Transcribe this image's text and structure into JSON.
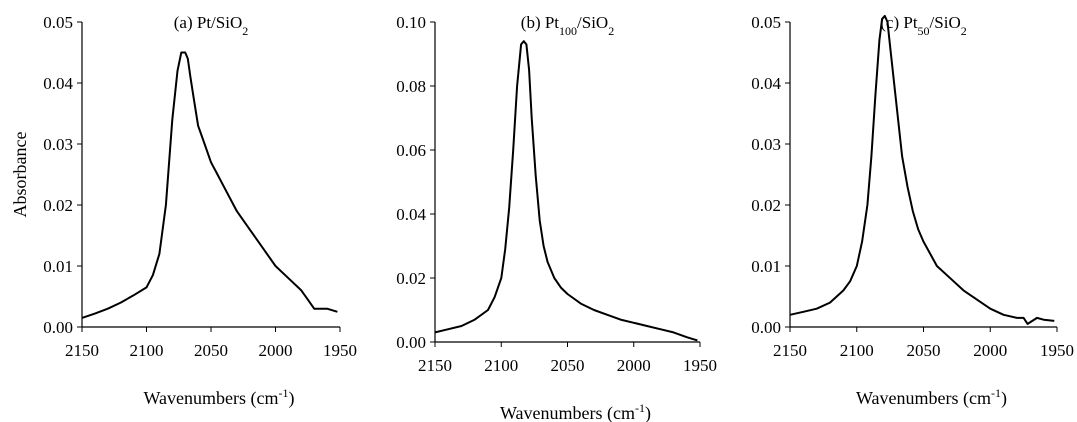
{
  "chart_data": [
    {
      "type": "line",
      "title": "(a) Pt/SiO₂",
      "title_parts": [
        {
          "t": "(a) Pt/SiO"
        },
        {
          "t": "2",
          "sub": true
        }
      ],
      "xlabel": "Wavenumbers (cm⁻¹)",
      "ylabel": "Absorbance",
      "xlim": [
        2150,
        1950
      ],
      "ylim": [
        0,
        0.05
      ],
      "x_ticks": [
        2150,
        2100,
        2050,
        2000,
        1950
      ],
      "y_ticks": [
        0.0,
        0.01,
        0.02,
        0.03,
        0.04,
        0.05
      ],
      "y_tick_labels": [
        "0.00",
        "0.01",
        "0.02",
        "0.03",
        "0.04",
        "0.05"
      ],
      "grid": false,
      "series": [
        {
          "x": [
            2150,
            2140,
            2130,
            2120,
            2110,
            2100,
            2095,
            2090,
            2085,
            2080,
            2076,
            2073,
            2070,
            2068,
            2066,
            2063,
            2060,
            2055,
            2050,
            2045,
            2040,
            2030,
            2020,
            2010,
            2000,
            1990,
            1980,
            1975,
            1970,
            1960,
            1952
          ],
          "y": [
            0.0015,
            0.0022,
            0.003,
            0.004,
            0.0052,
            0.0065,
            0.0085,
            0.012,
            0.02,
            0.034,
            0.042,
            0.045,
            0.045,
            0.044,
            0.041,
            0.037,
            0.033,
            0.03,
            0.027,
            0.025,
            0.023,
            0.019,
            0.016,
            0.013,
            0.01,
            0.008,
            0.006,
            0.0045,
            0.003,
            0.003,
            0.0025
          ]
        }
      ]
    },
    {
      "type": "line",
      "title": "(b) Pt₁₀₀/SiO₂",
      "title_parts": [
        {
          "t": "(b) Pt"
        },
        {
          "t": "100",
          "sub": true
        },
        {
          "t": "/SiO"
        },
        {
          "t": "2",
          "sub": true
        }
      ],
      "xlabel": "Wavenumbers (cm⁻¹)",
      "ylabel": "",
      "xlim": [
        2150,
        1950
      ],
      "ylim": [
        0,
        0.1
      ],
      "x_ticks": [
        2150,
        2100,
        2050,
        2000,
        1950
      ],
      "y_ticks": [
        0.0,
        0.02,
        0.04,
        0.06,
        0.08,
        0.1
      ],
      "y_tick_labels": [
        "0.00",
        "0.02",
        "0.04",
        "0.06",
        "0.08",
        "0.10"
      ],
      "grid": false,
      "series": [
        {
          "x": [
            2150,
            2140,
            2130,
            2120,
            2110,
            2105,
            2100,
            2097,
            2094,
            2091,
            2088,
            2085,
            2083,
            2081,
            2079,
            2077,
            2074,
            2071,
            2068,
            2065,
            2060,
            2055,
            2050,
            2040,
            2030,
            2020,
            2010,
            2000,
            1990,
            1980,
            1970,
            1960,
            1952
          ],
          "y": [
            0.003,
            0.004,
            0.005,
            0.007,
            0.01,
            0.014,
            0.02,
            0.029,
            0.042,
            0.06,
            0.08,
            0.093,
            0.094,
            0.093,
            0.085,
            0.07,
            0.052,
            0.038,
            0.03,
            0.025,
            0.02,
            0.017,
            0.015,
            0.012,
            0.01,
            0.0085,
            0.007,
            0.006,
            0.005,
            0.004,
            0.003,
            0.0015,
            0.0005
          ]
        }
      ]
    },
    {
      "type": "line",
      "title": "(c) Pt₅₀/SiO₂",
      "title_parts": [
        {
          "t": "(c) Pt"
        },
        {
          "t": "50",
          "sub": true
        },
        {
          "t": "/SiO"
        },
        {
          "t": "2",
          "sub": true
        }
      ],
      "xlabel": "Wavenumbers (cm⁻¹)",
      "ylabel": "",
      "xlim": [
        2150,
        1950
      ],
      "ylim": [
        0,
        0.05
      ],
      "x_ticks": [
        2150,
        2100,
        2050,
        2000,
        1950
      ],
      "y_ticks": [
        0.0,
        0.01,
        0.02,
        0.03,
        0.04,
        0.05
      ],
      "y_tick_labels": [
        "0.00",
        "0.01",
        "0.02",
        "0.03",
        "0.04",
        "0.05"
      ],
      "grid": false,
      "series": [
        {
          "x": [
            2150,
            2140,
            2130,
            2120,
            2110,
            2105,
            2100,
            2096,
            2092,
            2089,
            2086,
            2083,
            2081,
            2079,
            2077,
            2075,
            2072,
            2069,
            2066,
            2062,
            2058,
            2054,
            2050,
            2040,
            2030,
            2020,
            2010,
            2000,
            1990,
            1980,
            1975,
            1972,
            1965,
            1960,
            1952
          ],
          "y": [
            0.002,
            0.0025,
            0.003,
            0.004,
            0.006,
            0.0075,
            0.01,
            0.014,
            0.02,
            0.028,
            0.038,
            0.047,
            0.0505,
            0.051,
            0.05,
            0.046,
            0.04,
            0.034,
            0.028,
            0.023,
            0.019,
            0.016,
            0.014,
            0.01,
            0.008,
            0.006,
            0.0045,
            0.003,
            0.002,
            0.0015,
            0.0015,
            0.0005,
            0.0015,
            0.0012,
            0.001
          ]
        }
      ]
    }
  ]
}
